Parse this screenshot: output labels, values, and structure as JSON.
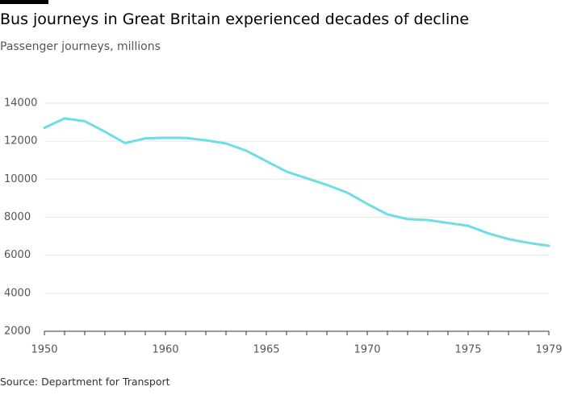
{
  "chart_data": {
    "type": "line",
    "title": "Bus journeys in Great Britain experienced decades of decline",
    "subtitle": "Passenger journeys, millions",
    "source": "Source: Department for Transport",
    "categories": [
      "1950",
      null,
      null,
      null,
      null,
      null,
      "1960",
      null,
      null,
      null,
      null,
      "1965",
      null,
      null,
      null,
      null,
      "1970",
      null,
      null,
      null,
      null,
      "1975",
      null,
      null,
      null,
      "1979"
    ],
    "series": [
      {
        "name": "Passenger journeys",
        "color": "#6fdde6",
        "values": [
          12700,
          13200,
          13050,
          12500,
          11900,
          12150,
          12180,
          12170,
          12050,
          11880,
          11500,
          10950,
          10400,
          10050,
          9700,
          9300,
          8700,
          8150,
          7900,
          7850,
          7700,
          7550,
          7150,
          6850,
          6650,
          6500
        ]
      }
    ],
    "ylim": [
      2000,
      14000
    ],
    "yticks": [
      2000,
      4000,
      6000,
      8000,
      10000,
      12000,
      14000
    ],
    "grid": true
  }
}
